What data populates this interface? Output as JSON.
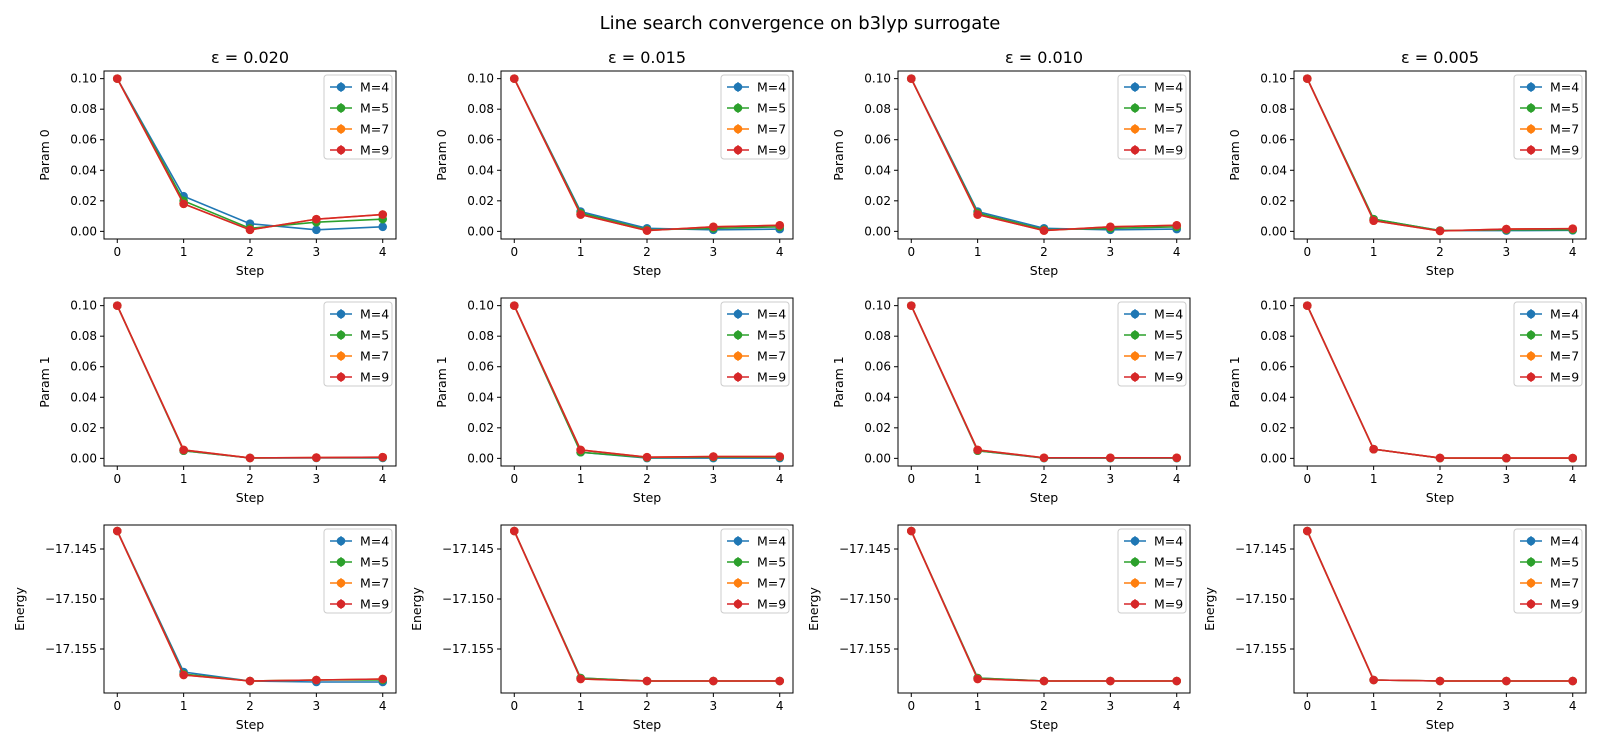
{
  "figure": {
    "title": "Line search convergence on b3lyp surrogate",
    "colors": {
      "M=4": "#1f77b4",
      "M=5": "#2ca02c",
      "M=7": "#ff7f0e",
      "M=9": "#d62728"
    }
  },
  "chart_data": [
    {
      "type": "line",
      "title": "ε = 0.020",
      "xlabel": "Step",
      "ylabel": "Param 0",
      "ylim": [
        -0.005,
        0.105
      ],
      "xlim": [
        -0.2,
        4.2
      ],
      "x": [
        0,
        1,
        2,
        3,
        4
      ],
      "xticks": [
        "0",
        "1",
        "2",
        "3",
        "4"
      ],
      "yticks": [
        "0.00",
        "0.02",
        "0.04",
        "0.06",
        "0.08",
        "0.10"
      ],
      "ytick_values": [
        0,
        0.02,
        0.04,
        0.06,
        0.08,
        0.1
      ],
      "legend": "top-right",
      "series": [
        {
          "name": "M=4",
          "values": [
            0.1,
            0.023,
            0.005,
            0.001,
            0.003
          ]
        },
        {
          "name": "M=5",
          "values": [
            0.1,
            0.02,
            0.002,
            0.006,
            0.008
          ]
        },
        {
          "name": "M=7",
          "values": [
            0.1,
            0.018,
            0.001,
            0.008,
            0.011
          ]
        },
        {
          "name": "M=9",
          "values": [
            0.1,
            0.018,
            0.001,
            0.008,
            0.011
          ]
        }
      ]
    },
    {
      "type": "line",
      "title": "ε = 0.015",
      "xlabel": "Step",
      "ylabel": "Param 0",
      "ylim": [
        -0.005,
        0.105
      ],
      "xlim": [
        -0.2,
        4.2
      ],
      "x": [
        0,
        1,
        2,
        3,
        4
      ],
      "xticks": [
        "0",
        "1",
        "2",
        "3",
        "4"
      ],
      "yticks": [
        "0.00",
        "0.02",
        "0.04",
        "0.06",
        "0.08",
        "0.10"
      ],
      "ytick_values": [
        0,
        0.02,
        0.04,
        0.06,
        0.08,
        0.1
      ],
      "legend": "top-right",
      "series": [
        {
          "name": "M=4",
          "values": [
            0.1,
            0.013,
            0.002,
            0.001,
            0.0015
          ]
        },
        {
          "name": "M=5",
          "values": [
            0.1,
            0.012,
            0.001,
            0.002,
            0.003
          ]
        },
        {
          "name": "M=7",
          "values": [
            0.1,
            0.011,
            0.0005,
            0.003,
            0.004
          ]
        },
        {
          "name": "M=9",
          "values": [
            0.1,
            0.011,
            0.0005,
            0.003,
            0.004
          ]
        }
      ]
    },
    {
      "type": "line",
      "title": "ε = 0.010",
      "xlabel": "Step",
      "ylabel": "Param 0",
      "ylim": [
        -0.005,
        0.105
      ],
      "xlim": [
        -0.2,
        4.2
      ],
      "x": [
        0,
        1,
        2,
        3,
        4
      ],
      "xticks": [
        "0",
        "1",
        "2",
        "3",
        "4"
      ],
      "yticks": [
        "0.00",
        "0.02",
        "0.04",
        "0.06",
        "0.08",
        "0.10"
      ],
      "ytick_values": [
        0,
        0.02,
        0.04,
        0.06,
        0.08,
        0.1
      ],
      "legend": "top-right",
      "series": [
        {
          "name": "M=4",
          "values": [
            0.1,
            0.013,
            0.002,
            0.001,
            0.0015
          ]
        },
        {
          "name": "M=5",
          "values": [
            0.1,
            0.012,
            0.001,
            0.002,
            0.003
          ]
        },
        {
          "name": "M=7",
          "values": [
            0.1,
            0.011,
            0.0005,
            0.003,
            0.004
          ]
        },
        {
          "name": "M=9",
          "values": [
            0.1,
            0.011,
            0.0005,
            0.003,
            0.004
          ]
        }
      ]
    },
    {
      "type": "line",
      "title": "ε = 0.005",
      "xlabel": "Step",
      "ylabel": "Param 0",
      "ylim": [
        -0.005,
        0.105
      ],
      "xlim": [
        -0.2,
        4.2
      ],
      "x": [
        0,
        1,
        2,
        3,
        4
      ],
      "xticks": [
        "0",
        "1",
        "2",
        "3",
        "4"
      ],
      "yticks": [
        "0.00",
        "0.02",
        "0.04",
        "0.06",
        "0.08",
        "0.10"
      ],
      "ytick_values": [
        0,
        0.02,
        0.04,
        0.06,
        0.08,
        0.1
      ],
      "legend": "top-right",
      "series": [
        {
          "name": "M=4",
          "values": [
            0.1,
            0.008,
            0.0005,
            0.0005,
            0.0007
          ]
        },
        {
          "name": "M=5",
          "values": [
            0.1,
            0.008,
            0.0005,
            0.001,
            0.001
          ]
        },
        {
          "name": "M=7",
          "values": [
            0.1,
            0.007,
            0.0003,
            0.0015,
            0.0018
          ]
        },
        {
          "name": "M=9",
          "values": [
            0.1,
            0.007,
            0.0003,
            0.0015,
            0.0018
          ]
        }
      ]
    },
    {
      "type": "line",
      "title": "",
      "xlabel": "Step",
      "ylabel": "Param 1",
      "ylim": [
        -0.005,
        0.105
      ],
      "xlim": [
        -0.2,
        4.2
      ],
      "x": [
        0,
        1,
        2,
        3,
        4
      ],
      "xticks": [
        "0",
        "1",
        "2",
        "3",
        "4"
      ],
      "yticks": [
        "0.00",
        "0.02",
        "0.04",
        "0.06",
        "0.08",
        "0.10"
      ],
      "ytick_values": [
        0,
        0.02,
        0.04,
        0.06,
        0.08,
        0.1
      ],
      "legend": "top-right",
      "series": [
        {
          "name": "M=4",
          "values": [
            0.1,
            0.005,
            0.0003,
            0.0003,
            0.0003
          ]
        },
        {
          "name": "M=5",
          "values": [
            0.1,
            0.005,
            0.0003,
            0.0004,
            0.0006
          ]
        },
        {
          "name": "M=7",
          "values": [
            0.1,
            0.0055,
            0.0003,
            0.0005,
            0.0008
          ]
        },
        {
          "name": "M=9",
          "values": [
            0.1,
            0.0055,
            0.0003,
            0.0005,
            0.0008
          ]
        }
      ]
    },
    {
      "type": "line",
      "title": "",
      "xlabel": "Step",
      "ylabel": "Param 1",
      "ylim": [
        -0.005,
        0.105
      ],
      "xlim": [
        -0.2,
        4.2
      ],
      "x": [
        0,
        1,
        2,
        3,
        4
      ],
      "xticks": [
        "0",
        "1",
        "2",
        "3",
        "4"
      ],
      "yticks": [
        "0.00",
        "0.02",
        "0.04",
        "0.06",
        "0.08",
        "0.10"
      ],
      "ytick_values": [
        0,
        0.02,
        0.04,
        0.06,
        0.08,
        0.1
      ],
      "legend": "top-right",
      "series": [
        {
          "name": "M=4",
          "values": [
            0.1,
            0.004,
            0.0002,
            0.0002,
            0.0002
          ]
        },
        {
          "name": "M=5",
          "values": [
            0.1,
            0.004,
            0.0005,
            0.0008,
            0.0008
          ]
        },
        {
          "name": "M=7",
          "values": [
            0.1,
            0.0055,
            0.0008,
            0.0012,
            0.0012
          ]
        },
        {
          "name": "M=9",
          "values": [
            0.1,
            0.0055,
            0.0008,
            0.0012,
            0.0012
          ]
        }
      ]
    },
    {
      "type": "line",
      "title": "",
      "xlabel": "Step",
      "ylabel": "Param 1",
      "ylim": [
        -0.005,
        0.105
      ],
      "xlim": [
        -0.2,
        4.2
      ],
      "x": [
        0,
        1,
        2,
        3,
        4
      ],
      "xticks": [
        "0",
        "1",
        "2",
        "3",
        "4"
      ],
      "yticks": [
        "0.00",
        "0.02",
        "0.04",
        "0.06",
        "0.08",
        "0.10"
      ],
      "ytick_values": [
        0,
        0.02,
        0.04,
        0.06,
        0.08,
        0.1
      ],
      "legend": "top-right",
      "series": [
        {
          "name": "M=4",
          "values": [
            0.1,
            0.005,
            0.0002,
            0.0002,
            0.0002
          ]
        },
        {
          "name": "M=5",
          "values": [
            0.1,
            0.005,
            0.0003,
            0.0003,
            0.0003
          ]
        },
        {
          "name": "M=7",
          "values": [
            0.1,
            0.0055,
            0.0004,
            0.0004,
            0.0004
          ]
        },
        {
          "name": "M=9",
          "values": [
            0.1,
            0.0055,
            0.0004,
            0.0004,
            0.0004
          ]
        }
      ]
    },
    {
      "type": "line",
      "title": "",
      "xlabel": "Step",
      "ylabel": "Param 1",
      "ylim": [
        -0.005,
        0.105
      ],
      "xlim": [
        -0.2,
        4.2
      ],
      "x": [
        0,
        1,
        2,
        3,
        4
      ],
      "xticks": [
        "0",
        "1",
        "2",
        "3",
        "4"
      ],
      "yticks": [
        "0.00",
        "0.02",
        "0.04",
        "0.06",
        "0.08",
        "0.10"
      ],
      "ytick_values": [
        0,
        0.02,
        0.04,
        0.06,
        0.08,
        0.1
      ],
      "legend": "top-right",
      "series": [
        {
          "name": "M=4",
          "values": [
            0.1,
            0.006,
            0.0002,
            0.0001,
            0.0001
          ]
        },
        {
          "name": "M=5",
          "values": [
            0.1,
            0.006,
            0.0002,
            0.0001,
            0.0001
          ]
        },
        {
          "name": "M=7",
          "values": [
            0.1,
            0.006,
            0.0003,
            0.0002,
            0.0002
          ]
        },
        {
          "name": "M=9",
          "values": [
            0.1,
            0.006,
            0.0003,
            0.0002,
            0.0002
          ]
        }
      ]
    },
    {
      "type": "line",
      "title": "",
      "xlabel": "Step",
      "ylabel": "Energy",
      "ylim": [
        -17.1594,
        -17.1426
      ],
      "xlim": [
        -0.2,
        4.2
      ],
      "x": [
        0,
        1,
        2,
        3,
        4
      ],
      "xticks": [
        "0",
        "1",
        "2",
        "3",
        "4"
      ],
      "yticks": [
        "−17.155",
        "−17.150",
        "−17.145"
      ],
      "ytick_values": [
        -17.155,
        -17.15,
        -17.145
      ],
      "legend": "top-right",
      "series": [
        {
          "name": "M=4",
          "values": [
            -17.1432,
            -17.1573,
            -17.1582,
            -17.1583,
            -17.1583
          ]
        },
        {
          "name": "M=5",
          "values": [
            -17.1432,
            -17.1575,
            -17.1582,
            -17.1581,
            -17.1581
          ]
        },
        {
          "name": "M=7",
          "values": [
            -17.1432,
            -17.1576,
            -17.1582,
            -17.1581,
            -17.158
          ]
        },
        {
          "name": "M=9",
          "values": [
            -17.1432,
            -17.1576,
            -17.1582,
            -17.1581,
            -17.158
          ]
        }
      ]
    },
    {
      "type": "line",
      "title": "",
      "xlabel": "Step",
      "ylabel": "Energy",
      "ylim": [
        -17.1594,
        -17.1426
      ],
      "xlim": [
        -0.2,
        4.2
      ],
      "x": [
        0,
        1,
        2,
        3,
        4
      ],
      "xticks": [
        "0",
        "1",
        "2",
        "3",
        "4"
      ],
      "yticks": [
        "−17.155",
        "−17.150",
        "−17.145"
      ],
      "ytick_values": [
        -17.155,
        -17.15,
        -17.145
      ],
      "legend": "top-right",
      "series": [
        {
          "name": "M=4",
          "values": [
            -17.1432,
            -17.1579,
            -17.1582,
            -17.1582,
            -17.1582
          ]
        },
        {
          "name": "M=5",
          "values": [
            -17.1432,
            -17.1579,
            -17.1582,
            -17.1582,
            -17.1582
          ]
        },
        {
          "name": "M=7",
          "values": [
            -17.1432,
            -17.158,
            -17.1582,
            -17.1582,
            -17.1582
          ]
        },
        {
          "name": "M=9",
          "values": [
            -17.1432,
            -17.158,
            -17.1582,
            -17.1582,
            -17.1582
          ]
        }
      ]
    },
    {
      "type": "line",
      "title": "",
      "xlabel": "Step",
      "ylabel": "Energy",
      "ylim": [
        -17.1594,
        -17.1426
      ],
      "xlim": [
        -0.2,
        4.2
      ],
      "x": [
        0,
        1,
        2,
        3,
        4
      ],
      "xticks": [
        "0",
        "1",
        "2",
        "3",
        "4"
      ],
      "yticks": [
        "−17.155",
        "−17.150",
        "−17.145"
      ],
      "ytick_values": [
        -17.155,
        -17.15,
        -17.145
      ],
      "legend": "top-right",
      "series": [
        {
          "name": "M=4",
          "values": [
            -17.1432,
            -17.1579,
            -17.1582,
            -17.1582,
            -17.1582
          ]
        },
        {
          "name": "M=5",
          "values": [
            -17.1432,
            -17.1579,
            -17.1582,
            -17.1582,
            -17.1582
          ]
        },
        {
          "name": "M=7",
          "values": [
            -17.1432,
            -17.158,
            -17.1582,
            -17.1582,
            -17.1582
          ]
        },
        {
          "name": "M=9",
          "values": [
            -17.1432,
            -17.158,
            -17.1582,
            -17.1582,
            -17.1582
          ]
        }
      ]
    },
    {
      "type": "line",
      "title": "",
      "xlabel": "Step",
      "ylabel": "Energy",
      "ylim": [
        -17.1594,
        -17.1426
      ],
      "xlim": [
        -0.2,
        4.2
      ],
      "x": [
        0,
        1,
        2,
        3,
        4
      ],
      "xticks": [
        "0",
        "1",
        "2",
        "3",
        "4"
      ],
      "yticks": [
        "−17.155",
        "−17.150",
        "−17.145"
      ],
      "ytick_values": [
        -17.155,
        -17.15,
        -17.145
      ],
      "legend": "top-right",
      "series": [
        {
          "name": "M=4",
          "values": [
            -17.1432,
            -17.1581,
            -17.1582,
            -17.1582,
            -17.1582
          ]
        },
        {
          "name": "M=5",
          "values": [
            -17.1432,
            -17.1581,
            -17.1582,
            -17.1582,
            -17.1582
          ]
        },
        {
          "name": "M=7",
          "values": [
            -17.1432,
            -17.1581,
            -17.1582,
            -17.1582,
            -17.1582
          ]
        },
        {
          "name": "M=9",
          "values": [
            -17.1432,
            -17.1581,
            -17.1582,
            -17.1582,
            -17.1582
          ]
        }
      ]
    }
  ]
}
